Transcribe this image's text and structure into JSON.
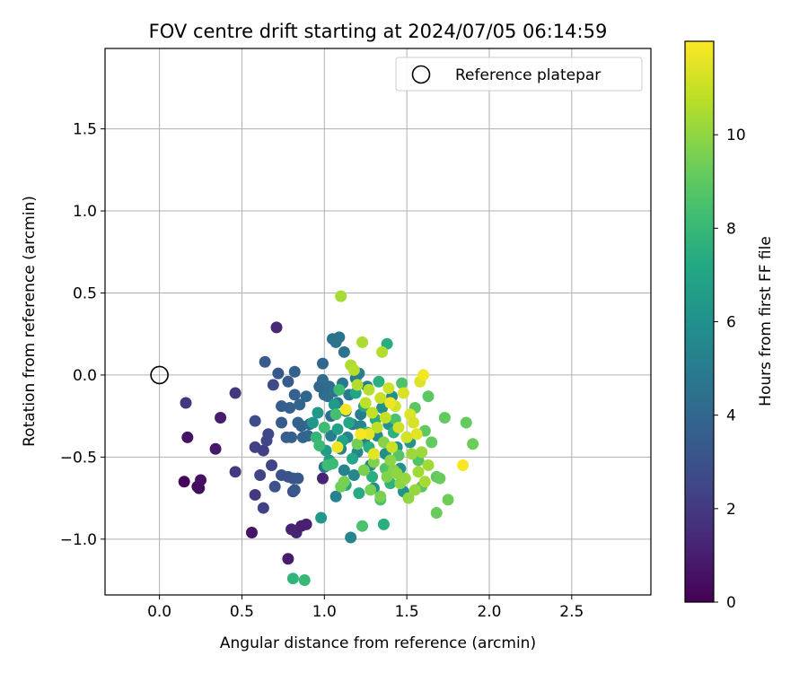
{
  "chart_data": {
    "type": "scatter",
    "title": "FOV centre drift starting at 2024/07/05 06:14:59",
    "xlabel": "Angular distance from reference (arcmin)",
    "ylabel": "Rotation from reference (arcmin)",
    "xlim": [
      -0.33,
      2.98
    ],
    "ylim": [
      -1.34,
      1.99
    ],
    "xticks": [
      0.0,
      0.5,
      1.0,
      1.5,
      2.0,
      2.5
    ],
    "xtick_labels": [
      "0.0",
      "0.5",
      "1.0",
      "1.5",
      "2.0",
      "2.5"
    ],
    "yticks": [
      -1.0,
      -0.5,
      0.0,
      0.5,
      1.0,
      1.5
    ],
    "ytick_labels": [
      "−1.0",
      "−0.5",
      "0.0",
      "0.5",
      "1.0",
      "1.5"
    ],
    "grid": true,
    "legend": {
      "placement": "top-right",
      "entries": [
        {
          "label": "Reference platepar",
          "marker": "open-circle"
        }
      ]
    },
    "reference": {
      "x": 0.0,
      "y": 0.0
    },
    "colorbar": {
      "label": "Hours from first FF file",
      "range": [
        0,
        12
      ],
      "ticks": [
        0,
        2,
        4,
        6,
        8,
        10
      ],
      "tick_labels": [
        "0",
        "2",
        "4",
        "6",
        "8",
        "10"
      ],
      "colormap": "viridis"
    },
    "colors": {
      "viridis": [
        "#440154",
        "#482475",
        "#414487",
        "#355f8d",
        "#2a788e",
        "#21918c",
        "#22a884",
        "#44bf70",
        "#7ad151",
        "#bddf26",
        "#fde725"
      ]
    },
    "points": [
      {
        "x": 0.15,
        "y": -0.65,
        "h": 0.2
      },
      {
        "x": 0.23,
        "y": -0.68,
        "h": 0.3
      },
      {
        "x": 0.24,
        "y": -0.69,
        "h": 0.4
      },
      {
        "x": 0.25,
        "y": -0.64,
        "h": 0.5
      },
      {
        "x": 0.17,
        "y": -0.38,
        "h": 0.6
      },
      {
        "x": 0.34,
        "y": -0.45,
        "h": 0.8
      },
      {
        "x": 0.37,
        "y": -0.26,
        "h": 0.9
      },
      {
        "x": 0.56,
        "y": -0.96,
        "h": 0.7
      },
      {
        "x": 0.78,
        "y": -1.12,
        "h": 0.9
      },
      {
        "x": 0.8,
        "y": -0.94,
        "h": 1.1
      },
      {
        "x": 0.83,
        "y": -0.96,
        "h": 1.2
      },
      {
        "x": 0.86,
        "y": -0.92,
        "h": 1.0
      },
      {
        "x": 0.89,
        "y": -0.91,
        "h": 1.1
      },
      {
        "x": 0.99,
        "y": -0.63,
        "h": 1.2
      },
      {
        "x": 0.71,
        "y": 0.29,
        "h": 1.4
      },
      {
        "x": 0.16,
        "y": -0.17,
        "h": 1.9
      },
      {
        "x": 0.46,
        "y": -0.11,
        "h": 1.9
      },
      {
        "x": 0.46,
        "y": -0.59,
        "h": 2.0
      },
      {
        "x": 0.58,
        "y": -0.73,
        "h": 2.0
      },
      {
        "x": 0.63,
        "y": -0.81,
        "h": 2.3
      },
      {
        "x": 0.58,
        "y": -0.44,
        "h": 2.3
      },
      {
        "x": 0.61,
        "y": -0.61,
        "h": 2.4
      },
      {
        "x": 0.63,
        "y": -0.46,
        "h": 2.2
      },
      {
        "x": 0.65,
        "y": -0.4,
        "h": 2.5
      },
      {
        "x": 0.66,
        "y": -0.36,
        "h": 2.6
      },
      {
        "x": 0.68,
        "y": -0.55,
        "h": 2.4
      },
      {
        "x": 0.69,
        "y": -0.06,
        "h": 2.7
      },
      {
        "x": 0.58,
        "y": -0.28,
        "h": 2.8
      },
      {
        "x": 0.7,
        "y": -0.68,
        "h": 3.0
      },
      {
        "x": 0.74,
        "y": -0.61,
        "h": 3.0
      },
      {
        "x": 0.78,
        "y": -0.62,
        "h": 3.1
      },
      {
        "x": 0.81,
        "y": -0.63,
        "h": 3.2
      },
      {
        "x": 0.81,
        "y": -0.71,
        "h": 2.9
      },
      {
        "x": 0.82,
        "y": -0.7,
        "h": 3.3
      },
      {
        "x": 0.84,
        "y": -0.63,
        "h": 3.3
      },
      {
        "x": 0.64,
        "y": 0.08,
        "h": 3.4
      },
      {
        "x": 0.72,
        "y": 0.01,
        "h": 3.3
      },
      {
        "x": 0.74,
        "y": -0.19,
        "h": 3.5
      },
      {
        "x": 0.74,
        "y": -0.29,
        "h": 3.4
      },
      {
        "x": 0.77,
        "y": -0.38,
        "h": 3.6
      },
      {
        "x": 0.78,
        "y": -0.04,
        "h": 3.5
      },
      {
        "x": 0.79,
        "y": -0.2,
        "h": 3.7
      },
      {
        "x": 0.8,
        "y": -0.38,
        "h": 3.6
      },
      {
        "x": 0.82,
        "y": 0.02,
        "h": 3.8
      },
      {
        "x": 0.82,
        "y": -0.12,
        "h": 3.7
      },
      {
        "x": 0.84,
        "y": -0.29,
        "h": 3.8
      },
      {
        "x": 0.85,
        "y": -0.18,
        "h": 3.9
      },
      {
        "x": 0.86,
        "y": -0.31,
        "h": 3.8
      },
      {
        "x": 0.87,
        "y": -0.38,
        "h": 3.9
      },
      {
        "x": 0.89,
        "y": -0.13,
        "h": 4.0
      },
      {
        "x": 0.9,
        "y": -0.37,
        "h": 4.0
      },
      {
        "x": 0.91,
        "y": -0.3,
        "h": 4.1
      },
      {
        "x": 0.97,
        "y": -0.07,
        "h": 4.0
      },
      {
        "x": 0.99,
        "y": 0.07,
        "h": 4.1
      },
      {
        "x": 0.99,
        "y": -0.03,
        "h": 4.2
      },
      {
        "x": 1.0,
        "y": -0.12,
        "h": 4.2
      },
      {
        "x": 1.02,
        "y": -0.13,
        "h": 4.3
      },
      {
        "x": 1.03,
        "y": -0.07,
        "h": 4.2
      },
      {
        "x": 1.04,
        "y": -0.25,
        "h": 4.3
      },
      {
        "x": 1.05,
        "y": 0.22,
        "h": 4.4
      },
      {
        "x": 1.07,
        "y": 0.2,
        "h": 4.5
      },
      {
        "x": 1.09,
        "y": 0.23,
        "h": 4.6
      },
      {
        "x": 1.12,
        "y": 0.14,
        "h": 4.6
      },
      {
        "x": 1.06,
        "y": -0.1,
        "h": 4.5
      },
      {
        "x": 1.08,
        "y": -0.17,
        "h": 4.7
      },
      {
        "x": 1.11,
        "y": -0.05,
        "h": 4.8
      },
      {
        "x": 1.13,
        "y": -0.22,
        "h": 4.7
      },
      {
        "x": 1.15,
        "y": -0.12,
        "h": 4.9
      },
      {
        "x": 1.17,
        "y": -0.3,
        "h": 4.8
      },
      {
        "x": 1.19,
        "y": -0.02,
        "h": 5.0
      },
      {
        "x": 1.21,
        "y": 0.01,
        "h": 5.1
      },
      {
        "x": 1.22,
        "y": -0.24,
        "h": 5.0
      },
      {
        "x": 1.24,
        "y": -0.4,
        "h": 5.2
      },
      {
        "x": 1.26,
        "y": -0.07,
        "h": 5.1
      },
      {
        "x": 1.0,
        "y": -0.56,
        "h": 4.9
      },
      {
        "x": 1.04,
        "y": -0.37,
        "h": 5.0
      },
      {
        "x": 1.07,
        "y": -0.74,
        "h": 5.3
      },
      {
        "x": 1.1,
        "y": -0.45,
        "h": 5.2
      },
      {
        "x": 1.12,
        "y": -0.58,
        "h": 5.3
      },
      {
        "x": 1.14,
        "y": -0.38,
        "h": 5.4
      },
      {
        "x": 1.16,
        "y": -0.99,
        "h": 5.5
      },
      {
        "x": 1.18,
        "y": -0.61,
        "h": 5.4
      },
      {
        "x": 1.2,
        "y": -0.47,
        "h": 5.6
      },
      {
        "x": 1.22,
        "y": -0.31,
        "h": 5.5
      },
      {
        "x": 1.28,
        "y": -0.55,
        "h": 5.7
      },
      {
        "x": 1.3,
        "y": -0.69,
        "h": 5.8
      },
      {
        "x": 1.32,
        "y": -0.37,
        "h": 5.6
      },
      {
        "x": 1.35,
        "y": -0.2,
        "h": 5.9
      },
      {
        "x": 1.37,
        "y": -0.48,
        "h": 5.8
      },
      {
        "x": 1.39,
        "y": -0.3,
        "h": 6.0
      },
      {
        "x": 1.41,
        "y": -0.13,
        "h": 5.9
      },
      {
        "x": 1.44,
        "y": -0.44,
        "h": 6.1
      },
      {
        "x": 1.46,
        "y": -0.57,
        "h": 6.0
      },
      {
        "x": 1.48,
        "y": -0.71,
        "h": 6.1
      },
      {
        "x": 1.5,
        "y": -0.38,
        "h": 5.9
      },
      {
        "x": 1.52,
        "y": -0.41,
        "h": 6.2
      },
      {
        "x": 0.93,
        "y": -0.29,
        "h": 6.3
      },
      {
        "x": 0.96,
        "y": -0.23,
        "h": 6.4
      },
      {
        "x": 0.98,
        "y": -0.87,
        "h": 6.4
      },
      {
        "x": 1.01,
        "y": -0.46,
        "h": 6.6
      },
      {
        "x": 1.03,
        "y": -0.52,
        "h": 6.7
      },
      {
        "x": 1.06,
        "y": -0.18,
        "h": 6.5
      },
      {
        "x": 1.08,
        "y": -0.33,
        "h": 6.8
      },
      {
        "x": 1.11,
        "y": -0.4,
        "h": 6.9
      },
      {
        "x": 1.13,
        "y": -0.67,
        "h": 7.0
      },
      {
        "x": 1.15,
        "y": -0.29,
        "h": 7.1
      },
      {
        "x": 1.17,
        "y": -0.51,
        "h": 7.2
      },
      {
        "x": 1.19,
        "y": -0.11,
        "h": 7.0
      },
      {
        "x": 1.21,
        "y": -0.72,
        "h": 7.3
      },
      {
        "x": 1.24,
        "y": -0.19,
        "h": 7.2
      },
      {
        "x": 1.27,
        "y": -0.44,
        "h": 7.4
      },
      {
        "x": 1.29,
        "y": -0.62,
        "h": 7.5
      },
      {
        "x": 1.31,
        "y": -0.27,
        "h": 7.3
      },
      {
        "x": 1.33,
        "y": -0.04,
        "h": 7.6
      },
      {
        "x": 1.36,
        "y": -0.91,
        "h": 7.5
      },
      {
        "x": 1.38,
        "y": 0.19,
        "h": 7.4
      },
      {
        "x": 1.4,
        "y": -0.66,
        "h": 7.7
      },
      {
        "x": 1.42,
        "y": -0.35,
        "h": 7.6
      },
      {
        "x": 0.81,
        "y": -1.24,
        "h": 7.8
      },
      {
        "x": 0.88,
        "y": -1.25,
        "h": 8.0
      },
      {
        "x": 0.95,
        "y": -0.38,
        "h": 7.9
      },
      {
        "x": 0.97,
        "y": -0.43,
        "h": 8.1
      },
      {
        "x": 1.0,
        "y": -0.32,
        "h": 8.2
      },
      {
        "x": 1.02,
        "y": -0.55,
        "h": 8.3
      },
      {
        "x": 1.05,
        "y": -0.54,
        "h": 8.1
      },
      {
        "x": 1.07,
        "y": -0.24,
        "h": 8.4
      },
      {
        "x": 1.09,
        "y": -0.09,
        "h": 8.2
      },
      {
        "x": 1.23,
        "y": -0.92,
        "h": 8.5
      },
      {
        "x": 1.26,
        "y": -0.35,
        "h": 8.4
      },
      {
        "x": 1.34,
        "y": -0.76,
        "h": 8.6
      },
      {
        "x": 1.37,
        "y": -0.57,
        "h": 8.7
      },
      {
        "x": 1.43,
        "y": -0.27,
        "h": 8.5
      },
      {
        "x": 1.45,
        "y": -0.49,
        "h": 8.8
      },
      {
        "x": 1.47,
        "y": -0.05,
        "h": 8.6
      },
      {
        "x": 1.55,
        "y": -0.2,
        "h": 8.9
      },
      {
        "x": 1.57,
        "y": -0.52,
        "h": 8.7
      },
      {
        "x": 1.59,
        "y": -0.68,
        "h": 8.8
      },
      {
        "x": 1.61,
        "y": -0.34,
        "h": 9.0
      },
      {
        "x": 1.63,
        "y": -0.13,
        "h": 8.9
      },
      {
        "x": 1.65,
        "y": -0.41,
        "h": 9.1
      },
      {
        "x": 1.68,
        "y": -0.62,
        "h": 9.0
      },
      {
        "x": 1.7,
        "y": -0.63,
        "h": 9.2
      },
      {
        "x": 1.73,
        "y": -0.26,
        "h": 9.1
      },
      {
        "x": 1.75,
        "y": -0.76,
        "h": 9.3
      },
      {
        "x": 1.68,
        "y": -0.84,
        "h": 9.2
      },
      {
        "x": 1.86,
        "y": -0.29,
        "h": 9.1
      },
      {
        "x": 1.9,
        "y": -0.42,
        "h": 9.3
      },
      {
        "x": 1.1,
        "y": -0.68,
        "h": 9.4
      },
      {
        "x": 1.12,
        "y": -0.65,
        "h": 9.5
      },
      {
        "x": 1.2,
        "y": -0.42,
        "h": 9.4
      },
      {
        "x": 1.24,
        "y": -0.58,
        "h": 9.6
      },
      {
        "x": 1.28,
        "y": -0.7,
        "h": 9.5
      },
      {
        "x": 1.3,
        "y": -0.53,
        "h": 9.7
      },
      {
        "x": 1.34,
        "y": -0.74,
        "h": 9.6
      },
      {
        "x": 1.36,
        "y": -0.41,
        "h": 9.8
      },
      {
        "x": 1.38,
        "y": -0.62,
        "h": 9.7
      },
      {
        "x": 1.4,
        "y": -0.52,
        "h": 9.9
      },
      {
        "x": 1.42,
        "y": -0.58,
        "h": 9.8
      },
      {
        "x": 1.44,
        "y": -0.6,
        "h": 10.0
      },
      {
        "x": 1.46,
        "y": -0.66,
        "h": 9.9
      },
      {
        "x": 1.49,
        "y": -0.63,
        "h": 10.1
      },
      {
        "x": 1.51,
        "y": -0.75,
        "h": 10.0
      },
      {
        "x": 1.53,
        "y": -0.48,
        "h": 10.2
      },
      {
        "x": 1.55,
        "y": -0.7,
        "h": 10.1
      },
      {
        "x": 1.57,
        "y": -0.59,
        "h": 10.3
      },
      {
        "x": 1.59,
        "y": -0.47,
        "h": 10.2
      },
      {
        "x": 1.61,
        "y": -0.65,
        "h": 10.4
      },
      {
        "x": 1.63,
        "y": -0.55,
        "h": 10.3
      },
      {
        "x": 1.1,
        "y": 0.48,
        "h": 10.4
      },
      {
        "x": 1.23,
        "y": 0.2,
        "h": 10.5
      },
      {
        "x": 1.35,
        "y": 0.14,
        "h": 10.6
      },
      {
        "x": 1.16,
        "y": 0.06,
        "h": 10.5
      },
      {
        "x": 1.18,
        "y": 0.03,
        "h": 10.7
      },
      {
        "x": 1.2,
        "y": -0.06,
        "h": 10.6
      },
      {
        "x": 1.25,
        "y": -0.17,
        "h": 10.8
      },
      {
        "x": 1.27,
        "y": -0.09,
        "h": 10.7
      },
      {
        "x": 1.29,
        "y": -0.23,
        "h": 10.9
      },
      {
        "x": 1.32,
        "y": -0.32,
        "h": 10.8
      },
      {
        "x": 1.34,
        "y": -0.14,
        "h": 11.0
      },
      {
        "x": 1.37,
        "y": -0.26,
        "h": 10.9
      },
      {
        "x": 1.39,
        "y": -0.08,
        "h": 11.1
      },
      {
        "x": 1.41,
        "y": -0.44,
        "h": 11.0
      },
      {
        "x": 1.43,
        "y": -0.19,
        "h": 11.2
      },
      {
        "x": 1.45,
        "y": -0.32,
        "h": 11.1
      },
      {
        "x": 1.48,
        "y": -0.11,
        "h": 11.3
      },
      {
        "x": 1.5,
        "y": -0.38,
        "h": 11.2
      },
      {
        "x": 1.52,
        "y": -0.24,
        "h": 11.4
      },
      {
        "x": 1.54,
        "y": -0.29,
        "h": 11.3
      },
      {
        "x": 1.56,
        "y": -0.36,
        "h": 11.5
      },
      {
        "x": 1.58,
        "y": -0.04,
        "h": 11.4
      },
      {
        "x": 1.27,
        "y": -0.36,
        "h": 11.6
      },
      {
        "x": 1.3,
        "y": -0.48,
        "h": 11.5
      },
      {
        "x": 1.4,
        "y": -0.17,
        "h": 11.7
      },
      {
        "x": 1.13,
        "y": -0.21,
        "h": 11.8
      },
      {
        "x": 1.6,
        "y": 0.0,
        "h": 11.8
      },
      {
        "x": 1.84,
        "y": -0.55,
        "h": 11.9
      },
      {
        "x": 1.08,
        "y": -0.44,
        "h": 11.7
      },
      {
        "x": 1.22,
        "y": -0.36,
        "h": 11.9
      }
    ]
  }
}
